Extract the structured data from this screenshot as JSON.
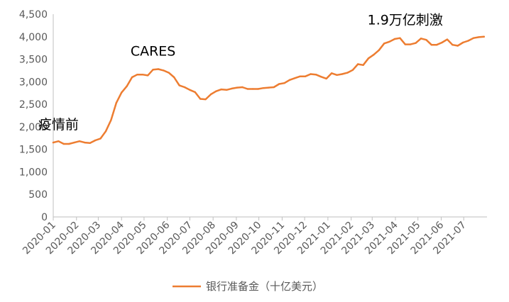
{
  "chart_data": {
    "type": "line",
    "title": "",
    "xlabel": "",
    "ylabel": "",
    "ylim": [
      0,
      4500
    ],
    "y_ticks": [
      "0",
      "500",
      "1,000",
      "1,500",
      "2,000",
      "2,500",
      "3,000",
      "3,500",
      "4,000",
      "4,500"
    ],
    "x_ticks": [
      "2020-01",
      "2020-02",
      "2020-03",
      "2020-04",
      "2020-05",
      "2020-06",
      "2020-07",
      "2020-08",
      "2020-09",
      "2020-10",
      "2020-11",
      "2020-12",
      "2021-01",
      "2021-02",
      "2021-03",
      "2021-04",
      "2021-05",
      "2021-06",
      "2021-07"
    ],
    "grid": false,
    "legend_position": "bottom",
    "color": "#ED7D31",
    "series": [
      {
        "name": "银行准备金（十亿美元）",
        "x": [
          "2020-01-01",
          "2020-01-08",
          "2020-01-15",
          "2020-01-22",
          "2020-01-29",
          "2020-02-05",
          "2020-02-12",
          "2020-02-19",
          "2020-02-26",
          "2020-03-04",
          "2020-03-11",
          "2020-03-18",
          "2020-03-25",
          "2020-04-01",
          "2020-04-08",
          "2020-04-15",
          "2020-04-22",
          "2020-04-29",
          "2020-05-06",
          "2020-05-13",
          "2020-05-20",
          "2020-05-27",
          "2020-06-03",
          "2020-06-10",
          "2020-06-17",
          "2020-06-24",
          "2020-07-01",
          "2020-07-08",
          "2020-07-15",
          "2020-07-22",
          "2020-07-29",
          "2020-08-05",
          "2020-08-12",
          "2020-08-19",
          "2020-08-26",
          "2020-09-02",
          "2020-09-09",
          "2020-09-16",
          "2020-09-23",
          "2020-09-30",
          "2020-10-07",
          "2020-10-14",
          "2020-10-21",
          "2020-10-28",
          "2020-11-04",
          "2020-11-11",
          "2020-11-18",
          "2020-11-25",
          "2020-12-02",
          "2020-12-09",
          "2020-12-16",
          "2020-12-23",
          "2020-12-30",
          "2021-01-06",
          "2021-01-13",
          "2021-01-20",
          "2021-01-27",
          "2021-02-03",
          "2021-02-10",
          "2021-02-17",
          "2021-02-24",
          "2021-03-03",
          "2021-03-10",
          "2021-03-17",
          "2021-03-24",
          "2021-03-31",
          "2021-04-07",
          "2021-04-14",
          "2021-04-21",
          "2021-04-28",
          "2021-05-05",
          "2021-05-12",
          "2021-05-19",
          "2021-05-26",
          "2021-06-02",
          "2021-06-09",
          "2021-06-16",
          "2021-06-23",
          "2021-06-30",
          "2021-07-07",
          "2021-07-14",
          "2021-07-21",
          "2021-07-28"
        ],
        "values": [
          1650,
          1680,
          1620,
          1620,
          1650,
          1680,
          1650,
          1640,
          1700,
          1740,
          1900,
          2150,
          2530,
          2760,
          2900,
          3100,
          3160,
          3160,
          3140,
          3270,
          3280,
          3250,
          3200,
          3100,
          2920,
          2880,
          2820,
          2770,
          2620,
          2610,
          2720,
          2790,
          2830,
          2820,
          2850,
          2870,
          2880,
          2840,
          2840,
          2840,
          2860,
          2870,
          2880,
          2950,
          2970,
          3040,
          3080,
          3120,
          3120,
          3170,
          3160,
          3110,
          3070,
          3190,
          3150,
          3170,
          3200,
          3260,
          3390,
          3370,
          3520,
          3600,
          3700,
          3850,
          3890,
          3950,
          3970,
          3830,
          3830,
          3860,
          3960,
          3930,
          3820,
          3820,
          3870,
          3940,
          3820,
          3800,
          3870,
          3910,
          3970,
          3990,
          4000
        ]
      }
    ],
    "annotations": [
      {
        "text": "疫情前",
        "x": "2020-01-08",
        "y": 1950
      },
      {
        "text": "CARES",
        "x": "2020-05-13",
        "y": 3580
      },
      {
        "text": "1.9万亿刺激",
        "x": "2021-04-14",
        "y": 4270
      }
    ]
  }
}
